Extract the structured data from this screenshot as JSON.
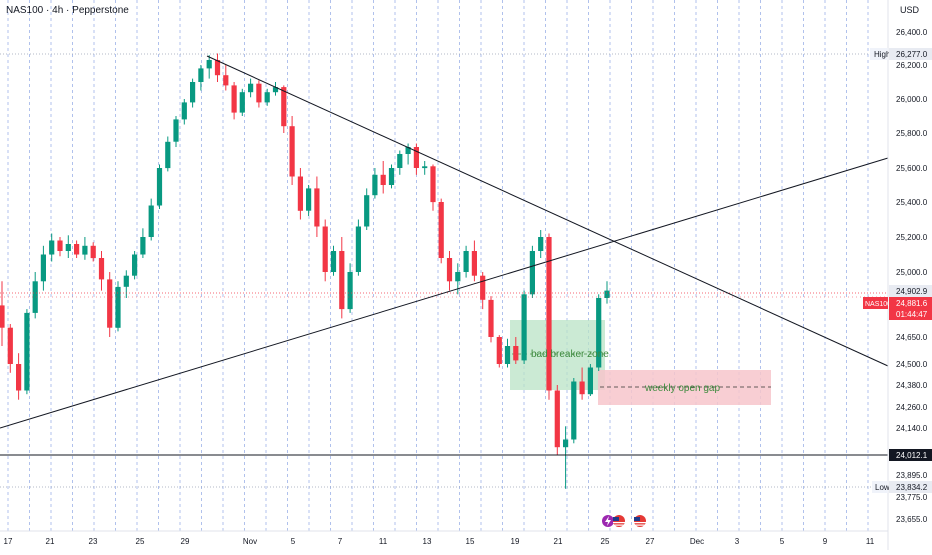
{
  "header": {
    "symbol_title": "NAS100 · 4h · Pepperstone",
    "currency": "USD"
  },
  "colors": {
    "up": "#089981",
    "down": "#f23645",
    "grid": "#9db2e8",
    "text": "#131722",
    "zone_green": "#b9e3c6",
    "zone_red": "#f7c5cb"
  },
  "chart_data": {
    "type": "candlestick",
    "title": "NAS100 · 4h · Pepperstone",
    "price_axis": {
      "ticks": [
        "26,400.0",
        "26,200.0",
        "26,000.0",
        "25,800.0",
        "25,600.0",
        "25,400.0",
        "25,200.0",
        "25,000.0",
        "24,650.0",
        "24,500.0",
        "24,380.0",
        "24,260.0",
        "24,140.0",
        "23,895.0",
        "23,775.0",
        "23,655.0"
      ]
    },
    "time_axis": {
      "labels": [
        "17",
        "21",
        "23",
        "25",
        "29",
        "Nov",
        "5",
        "7",
        "11",
        "13",
        "15",
        "19",
        "21",
        "25",
        "27",
        "Dec",
        "3",
        "5",
        "9",
        "11"
      ]
    },
    "price_labels": [
      {
        "name": "high",
        "text": "High",
        "value": "26,277.0"
      },
      {
        "name": "last-price",
        "value": "24,902.9"
      },
      {
        "name": "symbol",
        "text": "NAS100",
        "value": "24,881.6",
        "countdown": "01:44:47"
      },
      {
        "name": "support",
        "value": "24,012.1"
      },
      {
        "name": "low",
        "text": "Low",
        "value": "23,834.2"
      }
    ],
    "annotations": [
      {
        "name": "breaker-zone",
        "text": "bad breaker zone"
      },
      {
        "name": "weekly-gap",
        "text": "weekly open gap"
      }
    ],
    "series": [
      {
        "name": "ohlc",
        "values": [
          [
            24820,
            24950,
            24600,
            24700
          ],
          [
            24700,
            24720,
            24450,
            24500
          ],
          [
            24500,
            24560,
            24300,
            24350
          ],
          [
            24350,
            24800,
            24330,
            24780
          ],
          [
            24780,
            25000,
            24750,
            24950
          ],
          [
            24950,
            25150,
            24900,
            25100
          ],
          [
            25100,
            25220,
            25060,
            25180
          ],
          [
            25180,
            25200,
            25090,
            25120
          ],
          [
            25120,
            25210,
            25080,
            25160
          ],
          [
            25160,
            25180,
            25080,
            25100
          ],
          [
            25100,
            25200,
            25070,
            25150
          ],
          [
            25150,
            25170,
            25060,
            25080
          ],
          [
            25080,
            25120,
            24900,
            24960
          ],
          [
            24960,
            25000,
            24650,
            24700
          ],
          [
            24700,
            24950,
            24680,
            24920
          ],
          [
            24920,
            25010,
            24860,
            24980
          ],
          [
            24980,
            25120,
            24960,
            25100
          ],
          [
            25100,
            25250,
            25080,
            25200
          ],
          [
            25200,
            25420,
            25180,
            25380
          ],
          [
            25380,
            25620,
            25360,
            25600
          ],
          [
            25600,
            25780,
            25580,
            25750
          ],
          [
            25750,
            25900,
            25720,
            25880
          ],
          [
            25880,
            26000,
            25850,
            25980
          ],
          [
            25980,
            26120,
            25950,
            26100
          ],
          [
            26100,
            26200,
            26050,
            26180
          ],
          [
            26180,
            26260,
            26120,
            26230
          ],
          [
            26230,
            26270,
            26100,
            26140
          ],
          [
            26140,
            26200,
            26050,
            26080
          ],
          [
            26080,
            26100,
            25880,
            25920
          ],
          [
            25920,
            26060,
            25900,
            26040
          ],
          [
            26040,
            26120,
            26010,
            26090
          ],
          [
            26090,
            26110,
            25950,
            25980
          ],
          [
            25980,
            26060,
            25960,
            26040
          ],
          [
            26040,
            26100,
            26020,
            26070
          ],
          [
            26070,
            26080,
            25800,
            25840
          ],
          [
            25840,
            25900,
            25500,
            25550
          ],
          [
            25550,
            25600,
            25300,
            25350
          ],
          [
            25350,
            25500,
            25320,
            25480
          ],
          [
            25480,
            25550,
            25200,
            25260
          ],
          [
            25260,
            25300,
            24950,
            25000
          ],
          [
            25000,
            25150,
            24980,
            25120
          ],
          [
            25120,
            25200,
            24750,
            24800
          ],
          [
            24800,
            25050,
            24780,
            25000
          ],
          [
            25000,
            25300,
            24980,
            25260
          ],
          [
            25260,
            25480,
            25240,
            25440
          ],
          [
            25440,
            25600,
            25420,
            25560
          ],
          [
            25560,
            25640,
            25450,
            25500
          ],
          [
            25500,
            25620,
            25480,
            25600
          ],
          [
            25600,
            25700,
            25560,
            25680
          ],
          [
            25680,
            25740,
            25620,
            25720
          ],
          [
            25720,
            25740,
            25560,
            25600
          ],
          [
            25600,
            25640,
            25560,
            25610
          ],
          [
            25610,
            25620,
            25350,
            25400
          ],
          [
            25400,
            25420,
            25050,
            25080
          ],
          [
            25080,
            25120,
            24900,
            24950
          ],
          [
            24950,
            25050,
            24880,
            25000
          ],
          [
            25000,
            25150,
            24970,
            25120
          ],
          [
            25120,
            25180,
            24950,
            24980
          ],
          [
            24980,
            25000,
            24800,
            24850
          ],
          [
            24850,
            24870,
            24620,
            24650
          ],
          [
            24650,
            24660,
            24480,
            24500
          ],
          [
            24500,
            24640,
            24480,
            24600
          ],
          [
            24600,
            24650,
            24500,
            24520
          ],
          [
            24520,
            24900,
            24500,
            24880
          ],
          [
            24880,
            25150,
            24860,
            25120
          ],
          [
            25120,
            25240,
            25080,
            25200
          ],
          [
            25200,
            25220,
            24300,
            24350
          ],
          [
            24350,
            24380,
            24000,
            24040
          ],
          [
            24040,
            24150,
            23820,
            24080
          ],
          [
            24080,
            24420,
            24060,
            24400
          ],
          [
            24400,
            24480,
            24300,
            24330
          ],
          [
            24330,
            24500,
            24320,
            24480
          ],
          [
            24480,
            24880,
            24460,
            24860
          ],
          [
            24860,
            24950,
            24830,
            24900
          ]
        ]
      }
    ]
  }
}
